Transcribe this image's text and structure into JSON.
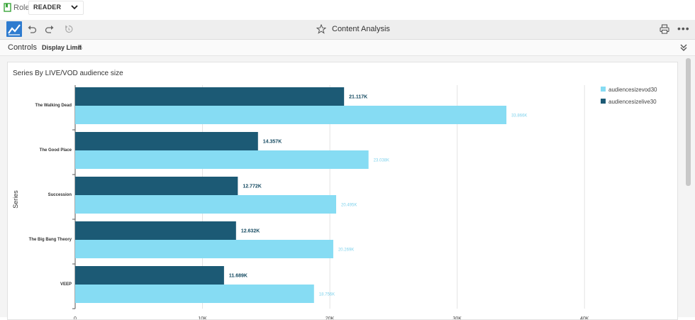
{
  "role_bar": {
    "label": "Role:",
    "selected": "READER",
    "icons": {
      "role": "bookmark-icon",
      "dropdown": "chevron-down-icon"
    }
  },
  "toolbar": {
    "title": "Content Analysis",
    "icons": [
      "app-logo-icon",
      "undo-icon",
      "redo-icon",
      "reset-icon",
      "star-icon",
      "print-icon",
      "more-icon"
    ],
    "more_label": "•••"
  },
  "controls": {
    "label": "Controls",
    "display_limit_label": "Display Limit",
    "display_limit_value": "5",
    "collapse_icon": "double-chevron-down-icon"
  },
  "colors": {
    "live": "#1c5a75",
    "vod": "#86dcf3",
    "logo": "#2e7bcf"
  },
  "chart_data": {
    "type": "bar",
    "orientation": "horizontal",
    "title": "Series By LIVE/VOD audience size",
    "ylabel": "Series",
    "xlabel": "",
    "categories": [
      "The Walking Dead",
      "The Good Place",
      "Succession",
      "The Big Bang Theory",
      "VEEP"
    ],
    "series": [
      {
        "name": "audiencesizelive30",
        "values": [
          21117,
          14357,
          12772,
          12632,
          11689
        ],
        "labels": [
          "21.117K",
          "14.357K",
          "12.772K",
          "12.632K",
          "11.689K"
        ]
      },
      {
        "name": "audiencesizevod30",
        "values": [
          33866,
          23038,
          20495,
          20269,
          18756
        ],
        "labels": [
          "33.866K",
          "23.038K",
          "20.495K",
          "20.269K",
          "18.756K"
        ]
      }
    ],
    "legend_order": [
      "audiencesizevod30",
      "audiencesizelive30"
    ],
    "xlim": [
      0,
      45000
    ],
    "xticks": [
      0,
      10000,
      20000,
      30000,
      40000
    ],
    "xtick_labels": [
      "0",
      "10K",
      "20K",
      "30K",
      "40K"
    ],
    "grid": true,
    "legend_position": "top-right"
  }
}
